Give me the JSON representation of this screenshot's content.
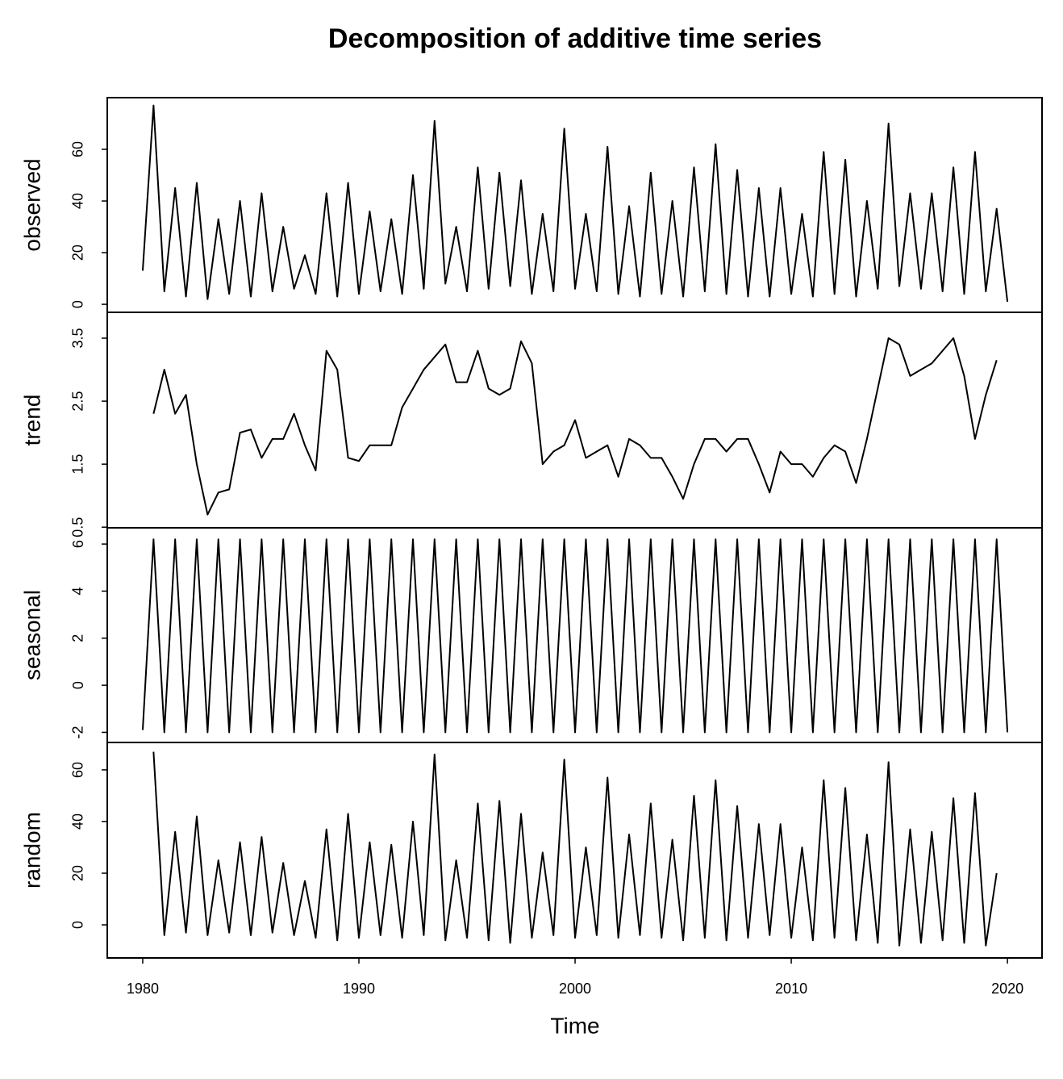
{
  "chart_data": {
    "type": "line",
    "title": "Decomposition of additive time series",
    "xlabel": "Time",
    "xlim": [
      1978.36,
      2021.6
    ],
    "xticks": [
      1980,
      1990,
      2000,
      2010,
      2020
    ],
    "color": "#000000",
    "x": [
      1980,
      1980.5,
      1981,
      1981.5,
      1982,
      1982.5,
      1983,
      1983.5,
      1984,
      1984.5,
      1985,
      1985.5,
      1986,
      1986.5,
      1987,
      1987.5,
      1988,
      1988.5,
      1989,
      1989.5,
      1990,
      1990.5,
      1991,
      1991.5,
      1992,
      1992.5,
      1993,
      1993.5,
      1994,
      1994.5,
      1995,
      1995.5,
      1996,
      1996.5,
      1997,
      1997.5,
      1998,
      1998.5,
      1999,
      1999.5,
      2000,
      2000.5,
      2001,
      2001.5,
      2002,
      2002.5,
      2003,
      2003.5,
      2004,
      2004.5,
      2005,
      2005.5,
      2006,
      2006.5,
      2007,
      2007.5,
      2008,
      2008.5,
      2009,
      2009.5,
      2010,
      2010.5,
      2011,
      2011.5,
      2012,
      2012.5,
      2013,
      2013.5,
      2014,
      2014.5,
      2015,
      2015.5,
      2016,
      2016.5,
      2017,
      2017.5,
      2018,
      2018.5,
      2019,
      2019.5,
      2020
    ],
    "panels": [
      {
        "ylabel": "observed",
        "ylim": [
          -3.1,
          80
        ],
        "yticks": [
          0,
          20,
          40,
          60
        ],
        "values": [
          13,
          77,
          5,
          45,
          3,
          47,
          2,
          33,
          4,
          40,
          3,
          43,
          5,
          30,
          6,
          19,
          4,
          43,
          3,
          47,
          4,
          36,
          5,
          33,
          4,
          50,
          6,
          71,
          8,
          30,
          5,
          53,
          6,
          51,
          7,
          48,
          4,
          35,
          5,
          68,
          6,
          35,
          5,
          61,
          4,
          38,
          3,
          51,
          4,
          40,
          3,
          53,
          5,
          62,
          4,
          52,
          3,
          45,
          3,
          45,
          4,
          35,
          3,
          59,
          4,
          56,
          3,
          40,
          6,
          70,
          7,
          43,
          6,
          43,
          5,
          53,
          4,
          59,
          5,
          37,
          1
        ]
      },
      {
        "ylabel": "trend",
        "ylim": [
          0.49,
          3.91
        ],
        "yticks": [
          0.5,
          1.5,
          2.5,
          3.5
        ],
        "values": [
          null,
          2.3,
          3.0,
          2.3,
          2.6,
          1.5,
          0.7,
          1.05,
          1.1,
          2.0,
          2.05,
          1.6,
          1.9,
          1.9,
          2.3,
          1.8,
          1.4,
          3.3,
          3.0,
          1.6,
          1.55,
          1.8,
          1.8,
          1.8,
          2.4,
          2.7,
          3.0,
          3.2,
          3.4,
          2.8,
          2.8,
          3.3,
          2.7,
          2.6,
          2.7,
          3.45,
          3.1,
          1.5,
          1.7,
          1.8,
          2.2,
          1.6,
          1.7,
          1.8,
          1.3,
          1.9,
          1.8,
          1.6,
          1.6,
          1.3,
          0.95,
          1.5,
          1.9,
          1.9,
          1.7,
          1.9,
          1.9,
          1.5,
          1.05,
          1.7,
          1.5,
          1.5,
          1.3,
          1.6,
          1.8,
          1.7,
          1.2,
          1.9,
          2.7,
          3.5,
          3.4,
          2.9,
          3.0,
          3.1,
          3.3,
          3.5,
          2.9,
          1.9,
          2.6,
          3.15,
          null
        ]
      },
      {
        "ylabel": "seasonal",
        "ylim": [
          -2.43,
          6.69
        ],
        "yticks": [
          -2,
          0,
          2,
          4,
          6
        ],
        "values": [
          -1.9,
          6.2,
          -2,
          6.2,
          -2,
          6.2,
          -2,
          6.2,
          -2,
          6.2,
          -2,
          6.2,
          -2,
          6.2,
          -2,
          6.2,
          -2,
          6.2,
          -2,
          6.2,
          -2,
          6.2,
          -2,
          6.2,
          -2,
          6.2,
          -2,
          6.2,
          -2,
          6.2,
          -2,
          6.2,
          -2,
          6.2,
          -2,
          6.2,
          -2,
          6.2,
          -2,
          6.2,
          -2,
          6.2,
          -2,
          6.2,
          -2,
          6.2,
          -2,
          6.2,
          -2,
          6.2,
          -2,
          6.2,
          -2,
          6.2,
          -2,
          6.2,
          -2,
          6.2,
          -2,
          6.2,
          -2,
          6.2,
          -2,
          6.2,
          -2,
          6.2,
          -2,
          6.2,
          -2,
          6.2,
          -2,
          6.2,
          -2,
          6.2,
          -2,
          6.2,
          -2,
          6.2,
          -2,
          6.2,
          -2
        ]
      },
      {
        "ylabel": "random",
        "ylim": [
          -12.8,
          70.6
        ],
        "yticks": [
          0,
          20,
          40,
          60
        ],
        "values": [
          null,
          67,
          -4,
          36,
          -3,
          42,
          -4,
          25,
          -3,
          32,
          -4,
          34,
          -3,
          24,
          -4,
          17,
          -5,
          37,
          -6,
          43,
          -5,
          32,
          -4,
          31,
          -5,
          40,
          -4,
          66,
          -6,
          25,
          -5,
          47,
          -6,
          48,
          -7,
          43,
          -5,
          28,
          -4,
          64,
          -5,
          30,
          -4,
          57,
          -5,
          35,
          -4,
          47,
          -5,
          33,
          -6,
          50,
          -5,
          56,
          -6,
          46,
          -5,
          39,
          -4,
          39,
          -5,
          30,
          -6,
          56,
          -5,
          53,
          -6,
          35,
          -7,
          63,
          -8,
          37,
          -7,
          36,
          -6,
          49,
          -7,
          51,
          -8,
          20,
          null
        ]
      }
    ]
  }
}
